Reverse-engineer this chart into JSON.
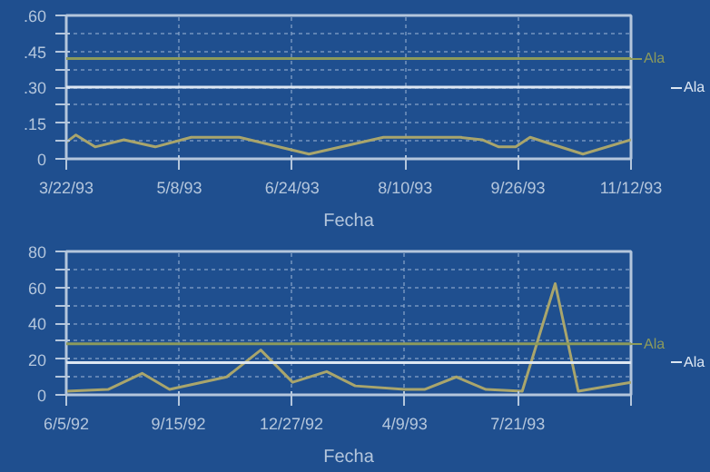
{
  "chart_data": [
    {
      "type": "line",
      "xlabel": "Fecha",
      "xlim": [
        "1993-03-22",
        "1993-11-12"
      ],
      "xticks": [
        {
          "value": "1993-03-22",
          "label": "3/22/93"
        },
        {
          "value": "1993-05-08",
          "label": "5/8/93"
        },
        {
          "value": "1993-06-24",
          "label": "6/24/93"
        },
        {
          "value": "1993-08-10",
          "label": "8/10/93"
        },
        {
          "value": "1993-09-26",
          "label": "9/26/93"
        },
        {
          "value": "1993-11-12",
          "label": "11/12/93"
        }
      ],
      "ylim": [
        0,
        0.6
      ],
      "yticks": [
        {
          "value": 0,
          "label": "0"
        },
        {
          "value": 0.075,
          "label": null
        },
        {
          "value": 0.15,
          "label": ".15"
        },
        {
          "value": 0.225,
          "label": null
        },
        {
          "value": 0.3,
          "label": ".30"
        },
        {
          "value": 0.375,
          "label": null
        },
        {
          "value": 0.45,
          "label": ".45"
        },
        {
          "value": 0.525,
          "label": null
        },
        {
          "value": 0.6,
          "label": ".60"
        }
      ],
      "grid": true,
      "series": [
        {
          "color": "#a9a56c",
          "x": [
            "1993-03-22",
            "1993-03-26",
            "1993-04-03",
            "1993-04-15",
            "1993-04-28",
            "1993-05-13",
            "1993-06-02",
            "1993-07-01",
            "1993-08-01",
            "1993-09-02",
            "1993-09-11",
            "1993-09-18",
            "1993-09-25",
            "1993-10-01",
            "1993-10-23",
            "1993-11-12"
          ],
          "values": [
            0.07,
            0.1,
            0.05,
            0.08,
            0.05,
            0.09,
            0.09,
            0.02,
            0.09,
            0.09,
            0.08,
            0.05,
            0.05,
            0.09,
            0.02,
            0.08
          ]
        }
      ],
      "ref_lines": [
        {
          "axis": "y",
          "value": 0.42,
          "label": "Ala",
          "color": "#8c9a5c"
        },
        {
          "axis": "y",
          "value": 0.3,
          "label": "Ala",
          "color": "#dce6f2"
        }
      ]
    },
    {
      "type": "line",
      "xlabel": "Fecha",
      "xlim": [
        "1992-06-05",
        "1993-11-01"
      ],
      "xticks": [
        {
          "value": "1992-06-05",
          "label": "6/5/92"
        },
        {
          "value": "1992-09-15",
          "label": "9/15/92"
        },
        {
          "value": "1992-12-27",
          "label": "12/27/92"
        },
        {
          "value": "1993-04-09",
          "label": "4/9/93"
        },
        {
          "value": "1993-07-21",
          "label": "7/21/93"
        },
        {
          "value": "1993-11-01",
          "label": null
        }
      ],
      "ylim": [
        0,
        80
      ],
      "yticks": [
        0,
        {
          "value": 10,
          "label": null
        },
        20,
        {
          "value": 30,
          "label": null
        },
        40,
        {
          "value": 50,
          "label": null
        },
        60,
        {
          "value": 70,
          "label": null
        },
        80
      ],
      "grid": true,
      "series": [
        {
          "color": "#a9a56c",
          "x": [
            "1992-06-05",
            "1992-07-13",
            "1992-08-13",
            "1992-09-07",
            "1992-10-29",
            "1992-11-29",
            "1992-12-28",
            "1993-01-28",
            "1993-02-23",
            "1993-04-09",
            "1993-04-27",
            "1993-05-26",
            "1993-06-22",
            "1993-07-25",
            "1993-08-24",
            "1993-09-14",
            "1993-11-01"
          ],
          "values": [
            2,
            3,
            12,
            3,
            10,
            25,
            7,
            13,
            5,
            3,
            3,
            10,
            3,
            2,
            62,
            2,
            7
          ]
        }
      ],
      "ref_lines": [
        {
          "axis": "y",
          "value": 28.5,
          "label": "Ala",
          "color": "#8c9a5c"
        },
        {
          "axis": "y",
          "value": 18,
          "label": "Ala",
          "color": "#dce6f2"
        }
      ]
    }
  ]
}
